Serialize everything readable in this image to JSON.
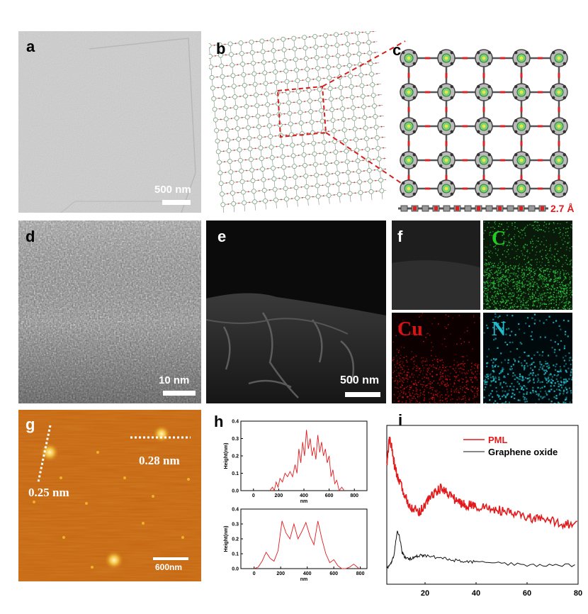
{
  "colors": {
    "pml_red": "#e31a1c",
    "element_C": "#22cc22",
    "element_Cu": "#dd1111",
    "element_N": "#22bbcc",
    "afm_orange": "#c86a10",
    "dash_red": "#d42020"
  },
  "panels": {
    "a": {
      "label": "a",
      "scale": "500 nm"
    },
    "b": {
      "label": "b"
    },
    "c": {
      "label": "c",
      "thickness": "2.7 Å"
    },
    "d": {
      "label": "d",
      "scale": "10 nm"
    },
    "e": {
      "label": "e",
      "scale": "500 nm"
    },
    "f": {
      "label": "f",
      "elements": [
        "C",
        "Cu",
        "N"
      ]
    },
    "g": {
      "label": "g",
      "height1": "0.28 nm",
      "height2": "0.25 nm",
      "scale": "600nm"
    },
    "h": {
      "label": "h"
    },
    "i": {
      "label": "i"
    }
  },
  "chart_data": [
    {
      "type": "line",
      "panel": "h-top",
      "xlabel": "nm",
      "ylabel": "Height(nm)",
      "xlim": [
        -100,
        900
      ],
      "ylim": [
        0,
        0.4
      ],
      "xticks": [
        0,
        200,
        400,
        600,
        800
      ],
      "yticks": [
        0.0,
        0.1,
        0.2,
        0.3,
        0.4
      ],
      "series": [
        {
          "x": [
            130,
            150,
            165,
            180,
            195,
            210,
            230,
            250,
            270,
            290,
            310,
            330,
            345,
            360,
            375,
            390,
            405,
            420,
            435,
            450,
            465,
            480,
            495,
            510,
            525,
            540,
            555,
            570,
            585,
            600,
            615,
            630,
            645,
            660,
            680,
            700,
            720
          ],
          "y": [
            0.0,
            0.02,
            0.0,
            0.05,
            0.02,
            0.07,
            0.05,
            0.1,
            0.08,
            0.11,
            0.08,
            0.15,
            0.1,
            0.24,
            0.16,
            0.28,
            0.2,
            0.35,
            0.24,
            0.3,
            0.2,
            0.25,
            0.18,
            0.32,
            0.22,
            0.28,
            0.2,
            0.24,
            0.16,
            0.2,
            0.08,
            0.12,
            0.04,
            0.06,
            0.0,
            0.02,
            0.0
          ]
        }
      ]
    },
    {
      "type": "line",
      "panel": "h-bottom",
      "xlabel": "nm",
      "ylabel": "Height(nm)",
      "xlim": [
        -100,
        850
      ],
      "ylim": [
        0,
        0.4
      ],
      "xticks": [
        0,
        200,
        400,
        600,
        800
      ],
      "yticks": [
        0.0,
        0.1,
        0.2,
        0.3,
        0.4
      ],
      "series": [
        {
          "x": [
            0,
            30,
            60,
            90,
            120,
            150,
            180,
            210,
            240,
            270,
            300,
            330,
            360,
            390,
            420,
            450,
            480,
            510,
            540,
            570,
            600,
            630,
            660,
            690,
            720,
            750,
            790
          ],
          "y": [
            0.0,
            0.01,
            0.05,
            0.11,
            0.07,
            0.05,
            0.12,
            0.32,
            0.24,
            0.2,
            0.3,
            0.2,
            0.25,
            0.31,
            0.22,
            0.16,
            0.32,
            0.2,
            0.1,
            0.04,
            0.06,
            0.02,
            0.0,
            0.0,
            0.01,
            0.03,
            0.0
          ]
        }
      ]
    },
    {
      "type": "line",
      "panel": "i",
      "xlim": [
        5,
        80
      ],
      "ylim": [
        0,
        1
      ],
      "xticks": [
        20,
        40,
        60,
        80
      ],
      "legend_position": "top-right",
      "series": [
        {
          "name": "PML",
          "color": "#e31a1c",
          "x": [
            5,
            6,
            7,
            8,
            9,
            10,
            12,
            14,
            16,
            18,
            20,
            22,
            24,
            26,
            28,
            30,
            32,
            34,
            36,
            38,
            40,
            44,
            48,
            52,
            56,
            60,
            64,
            68,
            72,
            76,
            80
          ],
          "y": [
            0.75,
            0.92,
            0.85,
            0.75,
            0.68,
            0.64,
            0.56,
            0.5,
            0.47,
            0.46,
            0.5,
            0.55,
            0.58,
            0.6,
            0.59,
            0.56,
            0.53,
            0.51,
            0.5,
            0.5,
            0.49,
            0.48,
            0.47,
            0.45,
            0.44,
            0.42,
            0.41,
            0.4,
            0.39,
            0.38,
            0.37
          ]
        },
        {
          "name": "Graphene oxide",
          "color": "#111111",
          "x": [
            5,
            6,
            7,
            8,
            9,
            10,
            11,
            12,
            14,
            16,
            18,
            20,
            24,
            28,
            32,
            36,
            40,
            50,
            60,
            70,
            80
          ],
          "y": [
            0.1,
            0.12,
            0.14,
            0.2,
            0.33,
            0.3,
            0.2,
            0.17,
            0.16,
            0.17,
            0.18,
            0.18,
            0.17,
            0.16,
            0.15,
            0.14,
            0.14,
            0.13,
            0.12,
            0.12,
            0.12
          ]
        }
      ]
    }
  ]
}
